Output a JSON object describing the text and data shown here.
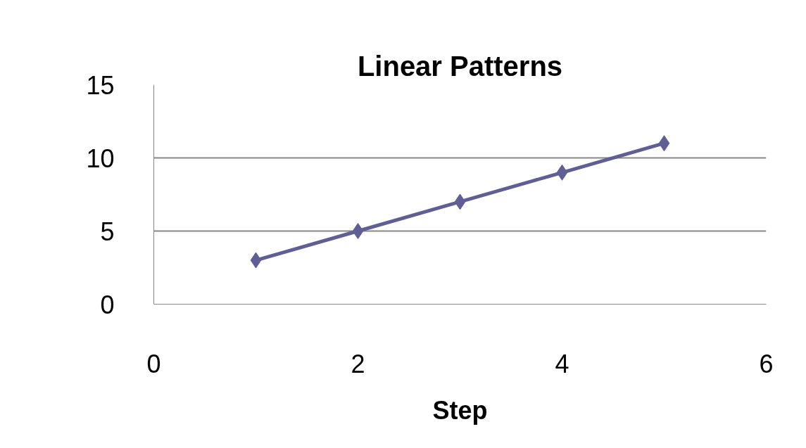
{
  "chart_data": {
    "type": "line",
    "title": "Linear Patterns",
    "xlabel": "Step",
    "x": [
      1,
      2,
      3,
      4,
      5
    ],
    "series": [
      {
        "color": "#5f5f96",
        "values": [
          3,
          5,
          7,
          9,
          11
        ]
      }
    ],
    "xlim": [
      0,
      6
    ],
    "xticks": [
      0,
      2,
      4,
      6
    ],
    "ylim": [
      0,
      15
    ],
    "yticks": [
      0,
      5,
      10,
      15
    ],
    "grid": "y",
    "marker": "diamond",
    "line_style": "solid"
  }
}
